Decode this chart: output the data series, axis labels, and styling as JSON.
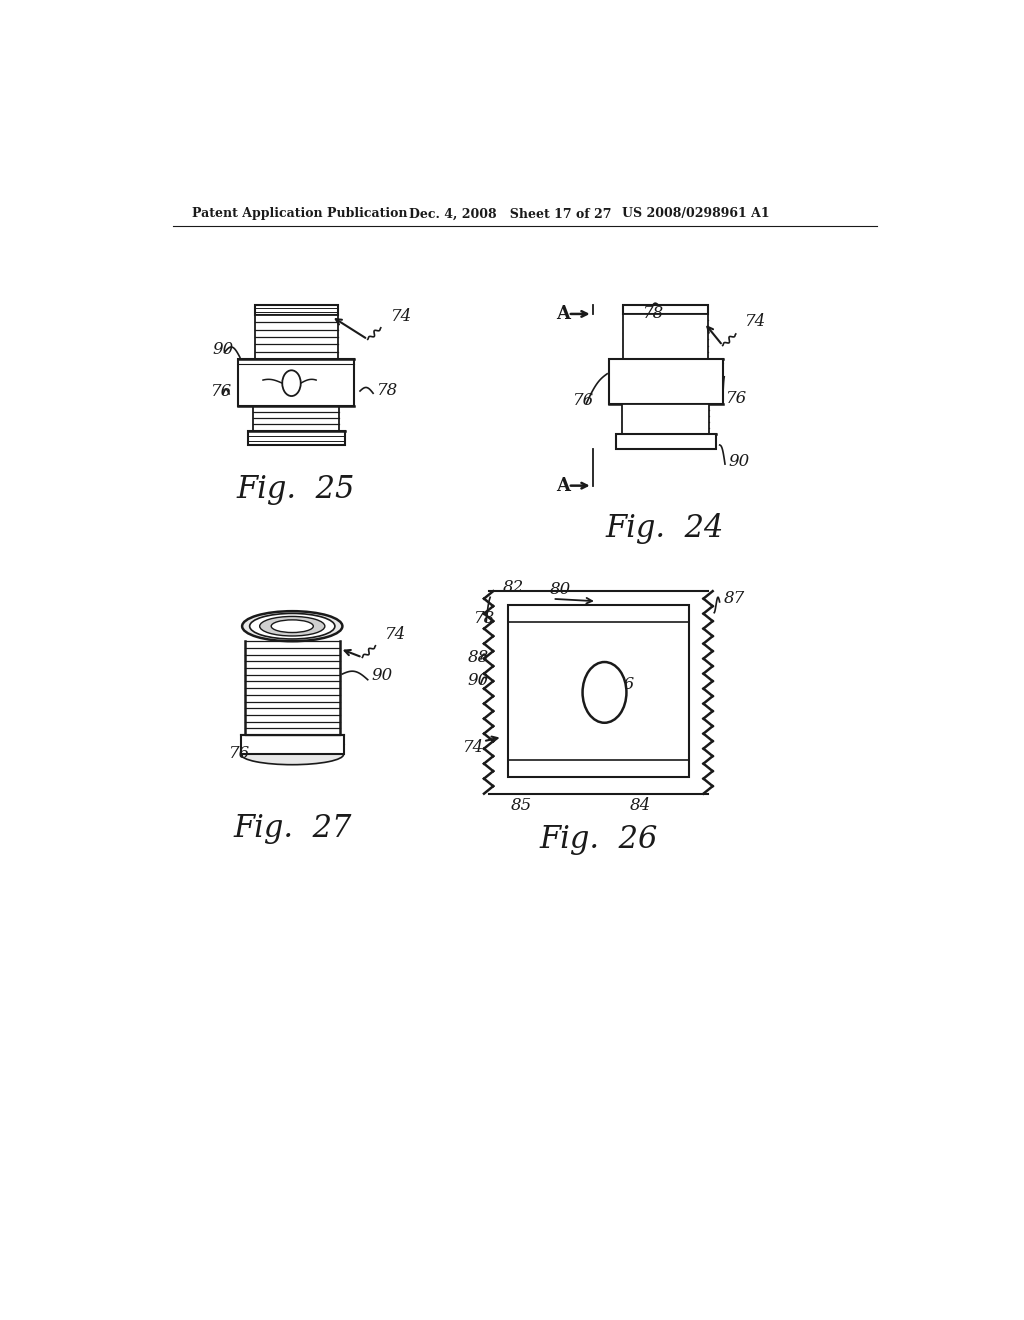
{
  "header_left": "Patent Application Publication",
  "header_mid": "Dec. 4, 2008   Sheet 17 of 27",
  "header_right": "US 2008/0298961 A1",
  "background": "#ffffff",
  "fig25_label": "Fig.  25",
  "fig24_label": "Fig.  24",
  "fig27_label": "Fig.  27",
  "fig26_label": "Fig.  26",
  "text_color": "#1a1a1a",
  "line_color": "#1a1a1a"
}
